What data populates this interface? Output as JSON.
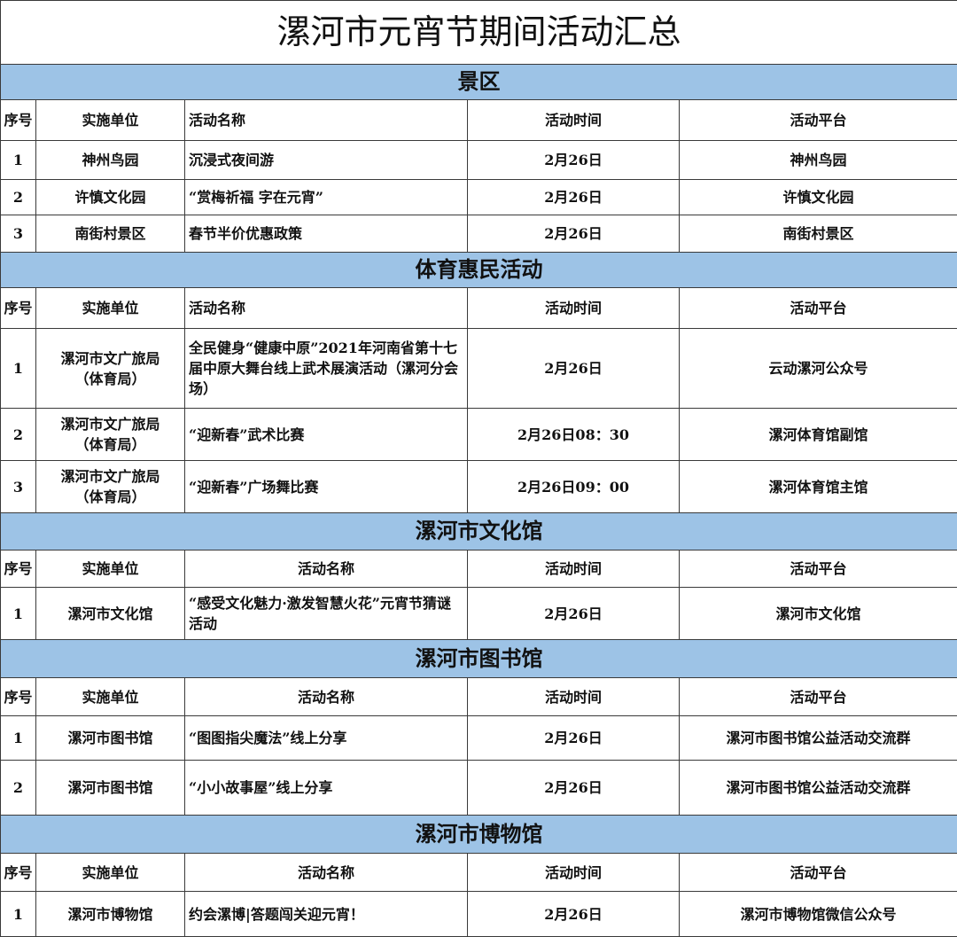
{
  "title": "漯河市元宵节期间活动汇总",
  "sections": [
    {
      "name": "景区",
      "header": [
        "序号",
        "实施单位",
        "活动名称",
        "活动时间",
        "活动平台"
      ],
      "rows": [
        [
          "1",
          "神州鸟园",
          "沉浸式夜间游",
          "2月26日",
          "神州鸟园"
        ],
        [
          "2",
          "许慎文化园",
          "“赏梅祈福  字在元宵”",
          "2月26日",
          "许慎文化园"
        ],
        [
          "3",
          "南街村景区",
          "春节半价优惠政策",
          "2月26日",
          "南街村景区"
        ]
      ]
    },
    {
      "name": "体育惠民活动",
      "header": [
        "序号",
        "实施单位",
        "活动名称",
        "活动时间",
        "活动平台"
      ],
      "rows": [
        [
          "1",
          "漯河市文广旅局（体育局）",
          "全民健身“健康中原”2021年河南省第十七届中原大舞台线上武术展演活动（漯河分会场）",
          "2月26日",
          "云动漯河公众号"
        ],
        [
          "2",
          "漯河市文广旅局（体育局）",
          "“迎新春”武术比赛",
          "2月26日08：30",
          "漯河体育馆副馆"
        ],
        [
          "3",
          "漯河市文广旅局（体育局）",
          "“迎新春”广场舞比赛",
          "2月26日09：00",
          "漯河体育馆主馆"
        ]
      ]
    },
    {
      "name": "漯河市文化馆",
      "header": [
        "序号",
        "实施单位",
        "活动名称",
        "活动时间",
        "活动平台"
      ],
      "rows": [
        [
          "1",
          "漯河市文化馆",
          "“感受文化魅力·激发智慧火花”元宵节猜谜活动",
          "2月26日",
          "漯河市文化馆"
        ]
      ]
    },
    {
      "name": "漯河市图书馆",
      "header": [
        "序号",
        "实施单位",
        "活动名称",
        "活动时间",
        "活动平台"
      ],
      "rows": [
        [
          "1",
          "漯河市图书馆",
          "“图图指尖魔法”线上分享",
          "2月26日",
          "漯河市图书馆公益活动交流群"
        ],
        [
          "2",
          "漯河市图书馆",
          "“小小故事屋”线上分享",
          "2月26日",
          "漯河市图书馆公益活动交流群"
        ]
      ]
    },
    {
      "name": "漯河市博物馆",
      "header": [
        "序号",
        "实施单位",
        "活动名称",
        "活动时间",
        "活动平台"
      ],
      "rows": [
        [
          "1",
          "漯河市博物馆",
          "约会漯博|答题闯关迎元宵！",
          "2月26日",
          "漯河市博物馆微信公众号"
        ]
      ]
    }
  ]
}
